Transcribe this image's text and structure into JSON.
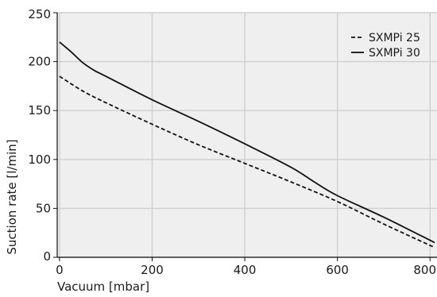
{
  "chart_data": {
    "type": "line",
    "xlabel": "Vacuum [mbar]",
    "ylabel": "Suction rate [l/min]",
    "xlim": [
      -5,
      815
    ],
    "ylim": [
      0,
      250
    ],
    "x_ticks": [
      0,
      200,
      400,
      600,
      800
    ],
    "y_ticks": [
      0,
      50,
      100,
      150,
      200,
      250
    ],
    "grid": true,
    "legend_position": "top-right",
    "background_color": "#efefef",
    "grid_color": "#cfcfcf",
    "series": [
      {
        "name": "SXMPi 25",
        "style": "dashed",
        "color": "#111111",
        "points": [
          [
            0,
            185
          ],
          [
            50,
            170
          ],
          [
            100,
            158
          ],
          [
            200,
            136
          ],
          [
            300,
            115
          ],
          [
            400,
            96
          ],
          [
            500,
            77
          ],
          [
            600,
            57
          ],
          [
            700,
            34
          ],
          [
            810,
            10
          ]
        ]
      },
      {
        "name": "SXMPi 30",
        "style": "solid",
        "color": "#111111",
        "points": [
          [
            0,
            220
          ],
          [
            25,
            210
          ],
          [
            50,
            199
          ],
          [
            75,
            191
          ],
          [
            100,
            185
          ],
          [
            200,
            161
          ],
          [
            300,
            139
          ],
          [
            400,
            116
          ],
          [
            500,
            92
          ],
          [
            550,
            77
          ],
          [
            600,
            63
          ],
          [
            700,
            41
          ],
          [
            810,
            15
          ]
        ]
      }
    ]
  }
}
